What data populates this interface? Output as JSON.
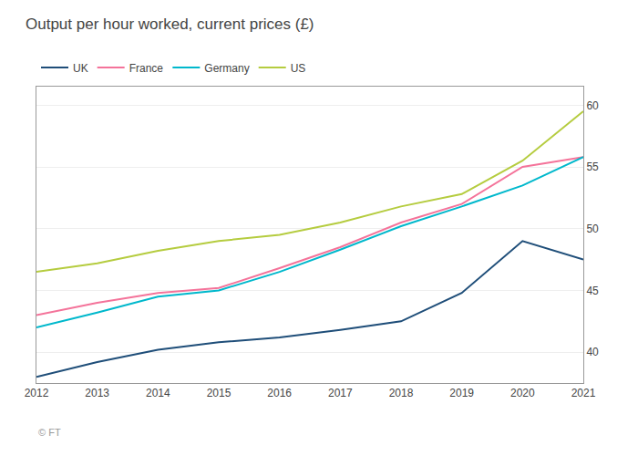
{
  "chart_data": {
    "type": "line",
    "title": "Output per hour worked, current prices (£)",
    "x": [
      2012,
      2013,
      2014,
      2015,
      2016,
      2017,
      2018,
      2019,
      2020,
      2021
    ],
    "series": [
      {
        "name": "UK",
        "color": "#1f4e79",
        "values": [
          38.0,
          39.2,
          40.2,
          40.8,
          41.2,
          41.8,
          42.5,
          44.8,
          49.0,
          47.5
        ]
      },
      {
        "name": "France",
        "color": "#f4739a",
        "values": [
          43.0,
          44.0,
          44.8,
          45.2,
          46.8,
          48.5,
          50.5,
          52.0,
          55.0,
          55.8
        ]
      },
      {
        "name": "Germany",
        "color": "#00b8cc",
        "values": [
          42.0,
          43.2,
          44.5,
          45.0,
          46.5,
          48.3,
          50.2,
          51.8,
          53.5,
          55.8
        ]
      },
      {
        "name": "US",
        "color": "#b5cc3f",
        "values": [
          46.5,
          47.2,
          48.2,
          49.0,
          49.5,
          50.5,
          51.8,
          52.8,
          55.5,
          59.5
        ]
      }
    ],
    "xlim": [
      2012,
      2021
    ],
    "xticks": [
      2012,
      2013,
      2014,
      2015,
      2016,
      2017,
      2018,
      2019,
      2020,
      2021
    ],
    "ylim": [
      37.5,
      61.5
    ],
    "yticks": [
      40,
      45,
      50,
      55,
      60
    ],
    "grid": true,
    "legend": "upper left",
    "annotations": [
      "© FT"
    ]
  }
}
